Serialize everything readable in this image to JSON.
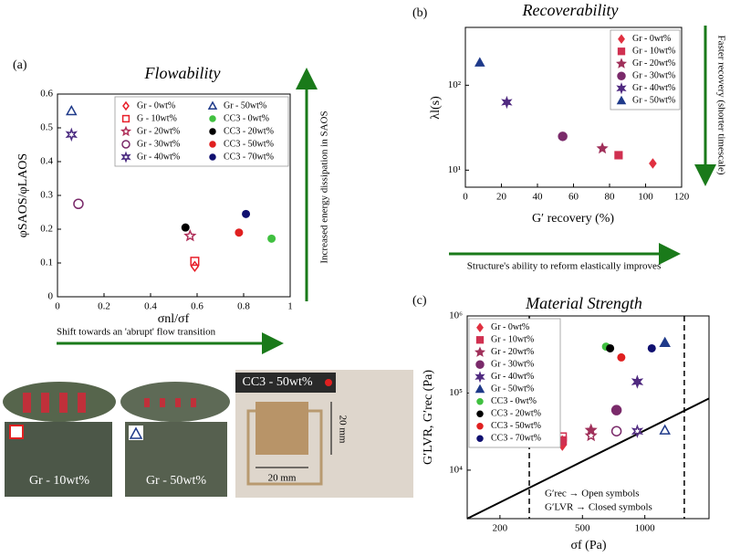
{
  "chart_data": [
    {
      "type": "scatter",
      "panel_label": "(a)",
      "title": "Flowability",
      "xlabel": "σnl/σf",
      "ylabel": "φSAOS/φLAOS",
      "xlim": [
        0,
        1
      ],
      "ylim": [
        0,
        0.6
      ],
      "xticks": [
        0,
        0.2,
        0.4,
        0.6,
        0.8,
        1
      ],
      "yticks": [
        0,
        0.1,
        0.2,
        0.3,
        0.4,
        0.5,
        0.6
      ],
      "legend": "upper right",
      "legend_columns": 2,
      "annotations": [
        "Increased energy dissipation in SAOS",
        "Shift towards an 'abrupt' flow transition"
      ],
      "series": [
        {
          "name": "Gr - 0wt%",
          "color": "#e8202a",
          "marker": "diamond",
          "filled": false,
          "x": [
            0.59
          ],
          "values": [
            0.09
          ]
        },
        {
          "name": "G  - 10wt%",
          "color": "#e8202a",
          "marker": "square",
          "filled": false,
          "x": [
            0.59
          ],
          "values": [
            0.105
          ]
        },
        {
          "name": "Gr - 20wt%",
          "color": "#b0305a",
          "marker": "star5",
          "filled": false,
          "x": [
            0.57
          ],
          "values": [
            0.18
          ]
        },
        {
          "name": "Gr - 30wt%",
          "color": "#7a2a6a",
          "marker": "circle",
          "filled": false,
          "x": [
            0.09
          ],
          "values": [
            0.275
          ]
        },
        {
          "name": "Gr - 40wt%",
          "color": "#4a2a80",
          "marker": "star6",
          "filled": false,
          "x": [
            0.06
          ],
          "values": [
            0.48
          ]
        },
        {
          "name": "Gr - 50wt%",
          "color": "#1f3a8a",
          "marker": "triangle",
          "filled": false,
          "x": [
            0.06
          ],
          "values": [
            0.55
          ]
        },
        {
          "name": "CC3 - 0wt%",
          "color": "#40c040",
          "marker": "dot",
          "filled": true,
          "x": [
            0.92
          ],
          "values": [
            0.172
          ]
        },
        {
          "name": "CC3 - 20wt%",
          "color": "#000000",
          "marker": "dot",
          "filled": true,
          "x": [
            0.55
          ],
          "values": [
            0.205
          ]
        },
        {
          "name": "CC3 - 50wt%",
          "color": "#e02020",
          "marker": "dot",
          "filled": true,
          "x": [
            0.78
          ],
          "values": [
            0.19
          ]
        },
        {
          "name": "CC3 - 70wt%",
          "color": "#101070",
          "marker": "dot",
          "filled": true,
          "x": [
            0.81
          ],
          "values": [
            0.245
          ]
        }
      ]
    },
    {
      "type": "scatter",
      "panel_label": "(b)",
      "title": "Recoverability",
      "xlabel": "G′ recovery (%)",
      "ylabel": "λl(s)",
      "xlim": [
        0,
        120
      ],
      "ylim": [
        6.3,
        480
      ],
      "log_y": true,
      "xticks": [
        0,
        20,
        40,
        60,
        80,
        100,
        120
      ],
      "yticks": [
        {
          "value": 10,
          "label": "10¹"
        },
        {
          "value": 100,
          "label": "10²"
        }
      ],
      "legend": "upper right",
      "legend_columns": 1,
      "annotations": [
        "Faster recovery (shorter timescale)",
        "Structure's ability to reform elastically improves"
      ],
      "series": [
        {
          "name": "Gr - 0wt%",
          "color": "#e03040",
          "marker": "diamond",
          "filled": true,
          "x": [
            104
          ],
          "values": [
            12
          ]
        },
        {
          "name": "Gr - 10wt%",
          "color": "#d03050",
          "marker": "square",
          "filled": true,
          "x": [
            85
          ],
          "values": [
            15
          ]
        },
        {
          "name": "Gr - 20wt%",
          "color": "#a0305a",
          "marker": "star5",
          "filled": true,
          "x": [
            76
          ],
          "values": [
            18
          ]
        },
        {
          "name": "Gr - 30wt%",
          "color": "#7a2a6a",
          "marker": "circle",
          "filled": true,
          "x": [
            54
          ],
          "values": [
            25
          ]
        },
        {
          "name": "Gr - 40wt%",
          "color": "#502a80",
          "marker": "star6",
          "filled": true,
          "x": [
            23
          ],
          "values": [
            63
          ]
        },
        {
          "name": "Gr - 50wt%",
          "color": "#1f3a8a",
          "marker": "triangle",
          "filled": true,
          "x": [
            8
          ],
          "values": [
            185
          ]
        }
      ]
    },
    {
      "type": "scatter",
      "panel_label": "(c)",
      "title": "Material Strength",
      "xlabel": "σf (Pa)",
      "ylabel": "G′LVR, G′rec (Pa)",
      "xlim": [
        139,
        2040
      ],
      "ylim": [
        2350,
        1000000
      ],
      "log_x": true,
      "log_y": true,
      "xticks": [
        200,
        500,
        1000
      ],
      "yticks": [
        {
          "value": 10000,
          "label": "10⁴"
        },
        {
          "value": 100000,
          "label": "10⁵"
        },
        {
          "value": 1000000,
          "label": "10⁶"
        }
      ],
      "legend": "upper left",
      "legend_columns": 1,
      "annotations": [
        "G′rec → Open symbols",
        "G′LVR → Closed symbols"
      ],
      "vlines": [
        277,
        1550
      ],
      "reference_line": {
        "x": [
          139,
          2040
        ],
        "y": [
          2350,
          85000
        ]
      },
      "series": [
        {
          "name": "Gr - 0wt%",
          "color": "#e03040",
          "marker": "diamond",
          "filled": true,
          "x": [
            400
          ],
          "values": [
            21000
          ],
          "values_rec": [
            24000
          ]
        },
        {
          "name": "Gr - 10wt%",
          "color": "#d03050",
          "marker": "square",
          "filled": true,
          "x": [
            400
          ],
          "values": [
            24000
          ],
          "values_rec": [
            27000
          ]
        },
        {
          "name": "Gr - 20wt%",
          "color": "#a0305a",
          "marker": "star5",
          "filled": true,
          "x": [
            550
          ],
          "values": [
            33000
          ],
          "values_rec": [
            28000
          ]
        },
        {
          "name": "Gr - 30wt%",
          "color": "#7a2a6a",
          "marker": "circle",
          "filled": true,
          "x": [
            730
          ],
          "values": [
            60000
          ],
          "values_rec": [
            32000
          ]
        },
        {
          "name": "Gr - 40wt%",
          "color": "#502a80",
          "marker": "star6",
          "filled": true,
          "x": [
            920
          ],
          "values": [
            140000
          ],
          "values_rec": [
            32000
          ]
        },
        {
          "name": "Gr - 50wt%",
          "color": "#1f3a8a",
          "marker": "triangle",
          "filled": true,
          "x": [
            1250
          ],
          "values": [
            450000
          ],
          "values_rec": [
            33000
          ]
        },
        {
          "name": "CC3 - 0wt%",
          "color": "#40c040",
          "marker": "dot",
          "filled": true,
          "x": [
            650
          ],
          "values": [
            400000
          ]
        },
        {
          "name": "CC3 - 20wt%",
          "color": "#000000",
          "marker": "dot",
          "filled": true,
          "x": [
            680
          ],
          "values": [
            380000
          ]
        },
        {
          "name": "CC3 - 50wt%",
          "color": "#e02020",
          "marker": "dot",
          "filled": true,
          "x": [
            770
          ],
          "values": [
            290000
          ]
        },
        {
          "name": "CC3 - 70wt%",
          "color": "#101070",
          "marker": "dot",
          "filled": true,
          "x": [
            1080
          ],
          "values": [
            380000
          ]
        }
      ]
    }
  ],
  "photos": {
    "labels": [
      "Gr - 10wt%",
      "Gr - 50wt%",
      "CC3 - 50wt%",
      "20 mm",
      "20 mm"
    ]
  }
}
